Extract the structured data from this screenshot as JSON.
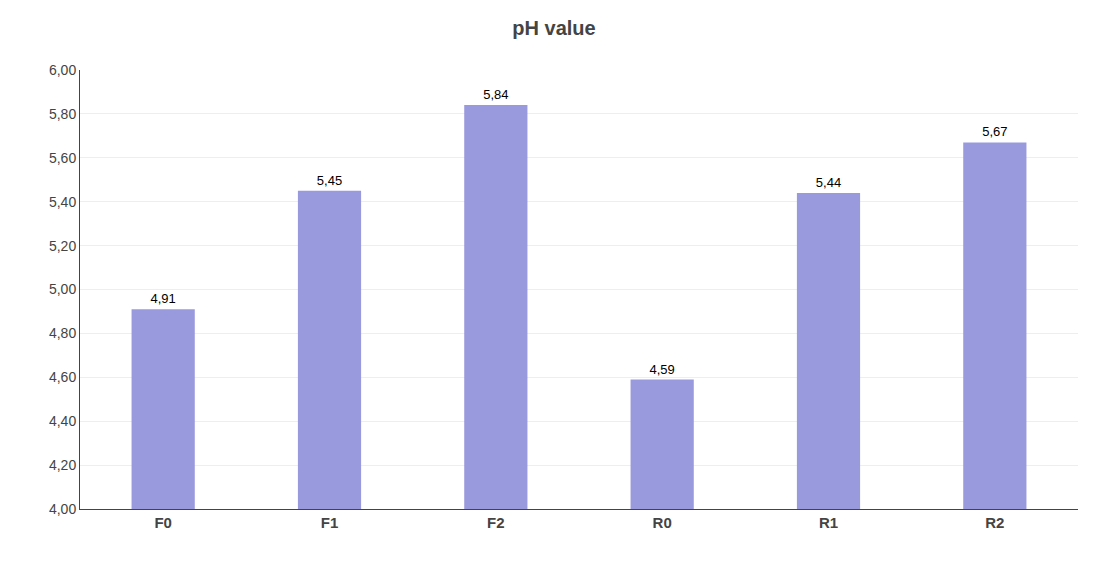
{
  "chart_data": {
    "type": "bar",
    "title": "pH value",
    "categories": [
      "F0",
      "F1",
      "F2",
      "R0",
      "R1",
      "R2"
    ],
    "values": [
      4.91,
      5.45,
      5.84,
      4.59,
      5.44,
      5.67
    ],
    "value_labels": [
      "4,91",
      "5,45",
      "5,84",
      "4,59",
      "5,44",
      "5,67"
    ],
    "color": "#9999DD",
    "ylim": [
      4.0,
      6.0
    ],
    "yticks": [
      {
        "value": 4.0,
        "label": "4,00"
      },
      {
        "value": 4.2,
        "label": "4,20"
      },
      {
        "value": 4.4,
        "label": "4,40"
      },
      {
        "value": 4.6,
        "label": "4,60"
      },
      {
        "value": 4.8,
        "label": "4,80"
      },
      {
        "value": 5.0,
        "label": "5,00"
      },
      {
        "value": 5.2,
        "label": "5,20"
      },
      {
        "value": 5.4,
        "label": "5,40"
      },
      {
        "value": 5.6,
        "label": "5,60"
      },
      {
        "value": 5.8,
        "label": "5,80"
      },
      {
        "value": 6.0,
        "label": "6,00"
      }
    ],
    "grid": true,
    "data_labels": true
  }
}
